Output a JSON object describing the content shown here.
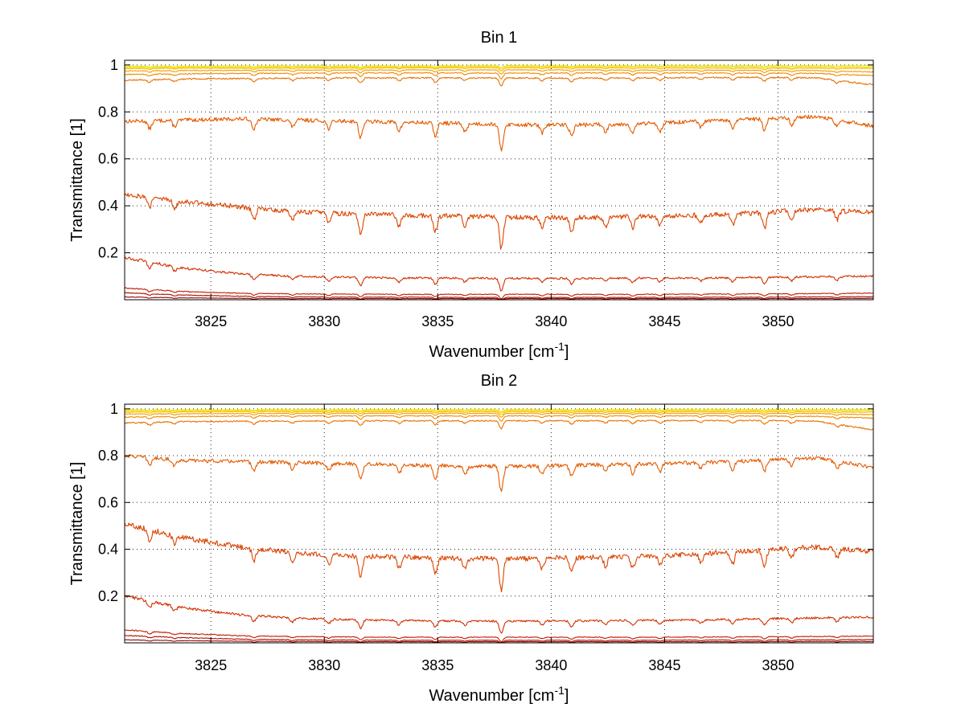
{
  "chart_data": [
    {
      "type": "line",
      "title": "Bin 1",
      "xlabel": "Wavenumber [cm",
      "xlabel_sup": "-1",
      "xlabel_end": "]",
      "ylabel": "Transmittance [1]",
      "xlim": [
        3821.2,
        3854.2
      ],
      "ylim": [
        0,
        1.02
      ],
      "xticks": [
        3825,
        3830,
        3835,
        3840,
        3845,
        3850
      ],
      "yticks": [
        0.2,
        0.4,
        0.6,
        0.8,
        1
      ],
      "xtick_labels": [
        "3825",
        "3830",
        "3835",
        "3840",
        "3845",
        "3850"
      ],
      "ytick_labels": [
        "0.2",
        "0.4",
        "0.6",
        "0.8",
        "1"
      ],
      "grid": true,
      "series": [
        {
          "color": "#e8f000",
          "values": [
            0.995,
            0.995,
            0.996,
            0.996,
            0.996,
            0.996,
            0.997,
            0.997,
            0.997,
            0.997,
            0.997,
            0.997,
            0.997,
            0.997
          ]
        },
        {
          "color": "#f6d800",
          "values": [
            0.99,
            0.991,
            0.991,
            0.992,
            0.992,
            0.992,
            0.993,
            0.993,
            0.993,
            0.993,
            0.993,
            0.992,
            0.992,
            0.991
          ]
        },
        {
          "color": "#f7b700",
          "values": [
            0.985,
            0.986,
            0.986,
            0.987,
            0.987,
            0.988,
            0.988,
            0.988,
            0.988,
            0.987,
            0.987,
            0.986,
            0.986,
            0.985
          ]
        },
        {
          "color": "#f49a00",
          "values": [
            0.975,
            0.976,
            0.977,
            0.978,
            0.978,
            0.979,
            0.979,
            0.979,
            0.979,
            0.978,
            0.978,
            0.977,
            0.976,
            0.97
          ]
        },
        {
          "color": "#ef8a00",
          "values": [
            0.96,
            0.962,
            0.964,
            0.965,
            0.966,
            0.966,
            0.966,
            0.965,
            0.966,
            0.966,
            0.966,
            0.965,
            0.964,
            0.955
          ]
        },
        {
          "color": "#e87000",
          "values": [
            0.935,
            0.94,
            0.942,
            0.944,
            0.945,
            0.945,
            0.945,
            0.944,
            0.944,
            0.945,
            0.946,
            0.947,
            0.945,
            0.915
          ]
        },
        {
          "color": "#e45a00",
          "values": [
            0.76,
            0.765,
            0.77,
            0.765,
            0.76,
            0.755,
            0.75,
            0.745,
            0.745,
            0.75,
            0.76,
            0.77,
            0.78,
            0.74
          ]
        },
        {
          "color": "#dc4400",
          "values": [
            0.45,
            0.42,
            0.395,
            0.375,
            0.365,
            0.36,
            0.355,
            0.35,
            0.35,
            0.355,
            0.36,
            0.37,
            0.385,
            0.37
          ]
        },
        {
          "color": "#d03000",
          "values": [
            0.18,
            0.135,
            0.11,
            0.1,
            0.095,
            0.093,
            0.092,
            0.091,
            0.091,
            0.092,
            0.093,
            0.095,
            0.098,
            0.1
          ]
        },
        {
          "color": "#c01e00",
          "values": [
            0.05,
            0.035,
            0.028,
            0.025,
            0.024,
            0.023,
            0.023,
            0.023,
            0.023,
            0.023,
            0.024,
            0.025,
            0.026,
            0.028
          ]
        },
        {
          "color": "#a80e00",
          "values": [
            0.03,
            0.02,
            0.015,
            0.012,
            0.011,
            0.011,
            0.01,
            0.01,
            0.01,
            0.01,
            0.011,
            0.011,
            0.012,
            0.013
          ]
        },
        {
          "color": "#900400",
          "values": [
            0.012,
            0.008,
            0.006,
            0.005,
            0.005,
            0.005,
            0.005,
            0.005,
            0.005,
            0.005,
            0.005,
            0.005,
            0.005,
            0.006
          ]
        }
      ]
    },
    {
      "type": "line",
      "title": "Bin 2",
      "xlabel": "Wavenumber [cm",
      "xlabel_sup": "-1",
      "xlabel_end": "]",
      "ylabel": "Transmittance [1]",
      "xlim": [
        3821.2,
        3854.2
      ],
      "ylim": [
        0,
        1.02
      ],
      "xticks": [
        3825,
        3830,
        3835,
        3840,
        3845,
        3850
      ],
      "yticks": [
        0.2,
        0.4,
        0.6,
        0.8,
        1
      ],
      "xtick_labels": [
        "3825",
        "3830",
        "3835",
        "3840",
        "3845",
        "3850"
      ],
      "ytick_labels": [
        "0.2",
        "0.4",
        "0.6",
        "0.8",
        "1"
      ],
      "grid": true,
      "series": [
        {
          "color": "#e8f000",
          "values": [
            0.996,
            0.996,
            0.996,
            0.997,
            0.997,
            0.997,
            0.997,
            0.997,
            0.997,
            0.997,
            0.997,
            0.997,
            0.997,
            0.997
          ]
        },
        {
          "color": "#f6d800",
          "values": [
            0.992,
            0.992,
            0.993,
            0.993,
            0.993,
            0.993,
            0.993,
            0.993,
            0.993,
            0.993,
            0.993,
            0.993,
            0.993,
            0.992
          ]
        },
        {
          "color": "#f7b700",
          "values": [
            0.986,
            0.987,
            0.988,
            0.988,
            0.988,
            0.988,
            0.988,
            0.988,
            0.988,
            0.988,
            0.988,
            0.988,
            0.987,
            0.986
          ]
        },
        {
          "color": "#f49a00",
          "values": [
            0.978,
            0.979,
            0.98,
            0.981,
            0.981,
            0.981,
            0.981,
            0.981,
            0.981,
            0.981,
            0.981,
            0.981,
            0.98,
            0.975
          ]
        },
        {
          "color": "#ef8a00",
          "values": [
            0.965,
            0.967,
            0.969,
            0.97,
            0.97,
            0.97,
            0.97,
            0.97,
            0.97,
            0.97,
            0.97,
            0.97,
            0.968,
            0.96
          ]
        },
        {
          "color": "#e87000",
          "values": [
            0.94,
            0.945,
            0.947,
            0.948,
            0.949,
            0.949,
            0.949,
            0.949,
            0.949,
            0.949,
            0.95,
            0.95,
            0.948,
            0.91
          ]
        },
        {
          "color": "#e45a00",
          "values": [
            0.8,
            0.78,
            0.775,
            0.77,
            0.765,
            0.76,
            0.755,
            0.755,
            0.76,
            0.765,
            0.77,
            0.78,
            0.79,
            0.75
          ]
        },
        {
          "color": "#dc4400",
          "values": [
            0.51,
            0.45,
            0.41,
            0.385,
            0.37,
            0.365,
            0.36,
            0.36,
            0.365,
            0.37,
            0.38,
            0.395,
            0.41,
            0.39
          ]
        },
        {
          "color": "#d03000",
          "values": [
            0.2,
            0.15,
            0.12,
            0.105,
            0.098,
            0.095,
            0.093,
            0.093,
            0.094,
            0.096,
            0.098,
            0.102,
            0.107,
            0.11
          ]
        },
        {
          "color": "#c01e00",
          "values": [
            0.055,
            0.04,
            0.03,
            0.027,
            0.025,
            0.024,
            0.024,
            0.024,
            0.024,
            0.024,
            0.025,
            0.026,
            0.027,
            0.029
          ]
        },
        {
          "color": "#a80e00",
          "values": [
            0.032,
            0.022,
            0.016,
            0.013,
            0.012,
            0.011,
            0.011,
            0.011,
            0.011,
            0.011,
            0.012,
            0.012,
            0.013,
            0.014
          ]
        },
        {
          "color": "#900400",
          "values": [
            0.013,
            0.009,
            0.007,
            0.006,
            0.005,
            0.005,
            0.005,
            0.005,
            0.005,
            0.005,
            0.005,
            0.005,
            0.006,
            0.006
          ]
        }
      ]
    }
  ]
}
